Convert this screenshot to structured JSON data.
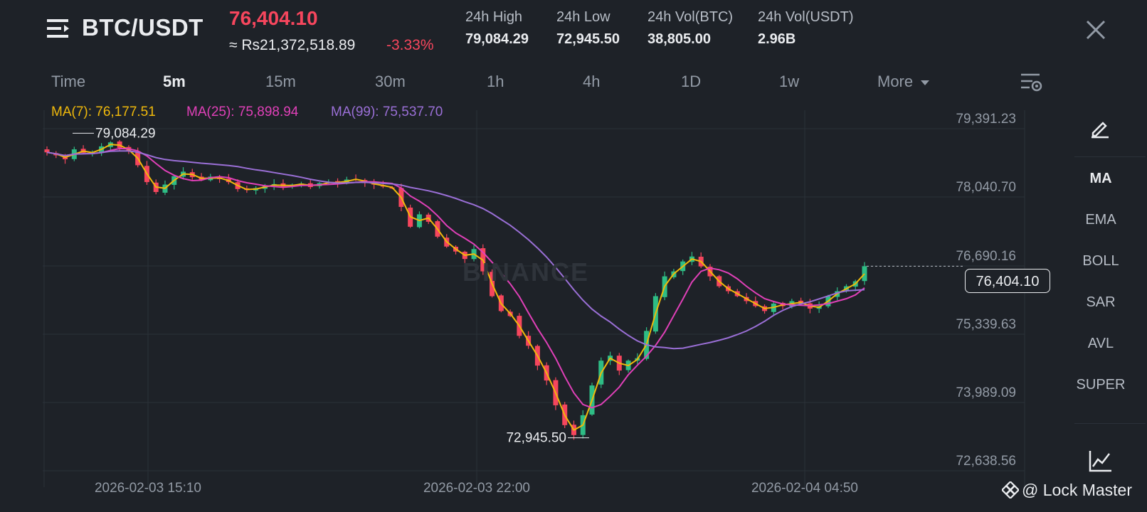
{
  "header": {
    "pair": "BTC/USDT",
    "last_price": "76,404.10",
    "approx_inr": "≈ Rs21,372,518.89",
    "change_pct": "-3.33%",
    "stats": [
      {
        "label": "24h High",
        "value": "79,084.29"
      },
      {
        "label": "24h Low",
        "value": "72,945.50"
      },
      {
        "label": "24h Vol(BTC)",
        "value": "38,805.00"
      },
      {
        "label": "24h Vol(USDT)",
        "value": "2.96B"
      }
    ]
  },
  "intervals": {
    "items": [
      "Time",
      "5m",
      "15m",
      "30m",
      "1h",
      "4h",
      "1D",
      "1w"
    ],
    "active": "5m",
    "more_label": "More"
  },
  "indicators": {
    "ma7": "MA(7): 76,177.51",
    "ma25": "MA(25): 75,898.94",
    "ma99": "MA(99): 75,537.70"
  },
  "side_panel": {
    "items": [
      "MA",
      "EMA",
      "BOLL",
      "SAR",
      "AVL",
      "SUPER"
    ],
    "active": "MA"
  },
  "watermark": "BINANCE",
  "current_price_tag": "76,404.10",
  "attribution": "@ Lock Master",
  "colors": {
    "up": "#2ebd85",
    "down": "#f6465d",
    "ma7": "#f0b90b",
    "ma25": "#e040b8",
    "ma99": "#9a6fd6",
    "background": "#1e2228"
  },
  "chart_data": {
    "type": "candlestick",
    "interval": "5m",
    "y_ticks": [
      "79,391.23",
      "78,040.70",
      "76,690.16",
      "75,339.63",
      "73,989.09",
      "72,638.56"
    ],
    "ylim": [
      72638.56,
      79391.23
    ],
    "x_ticks": [
      "2026-02-03 15:10",
      "2026-02-03 22:00",
      "2026-02-04 04:50"
    ],
    "high_marker": "79,084.29",
    "low_marker": "72,945.50",
    "ma_legend": [
      "MA(7)",
      "MA(25)",
      "MA(99)"
    ],
    "close_series": [
      78700,
      78640,
      78560,
      78760,
      78690,
      78700,
      78820,
      78900,
      78790,
      78720,
      78440,
      78100,
      77900,
      78050,
      78220,
      78310,
      78200,
      78150,
      78210,
      78160,
      78100,
      77960,
      77940,
      77980,
      78020,
      78060,
      78010,
      78050,
      78070,
      78000,
      78080,
      78100,
      78080,
      78150,
      78160,
      78080,
      78050,
      78010,
      77980,
      77600,
      77200,
      77450,
      77300,
      77000,
      76800,
      76700,
      76550,
      76750,
      76300,
      75800,
      75500,
      75400,
      75000,
      74800,
      74400,
      74100,
      73600,
      73200,
      73000,
      73400,
      74000,
      74500,
      74600,
      74300,
      74500,
      74550,
      75100,
      75800,
      76200,
      76300,
      76500,
      76600,
      76400,
      76200,
      76000,
      75900,
      75800,
      75700,
      75600,
      75500,
      75650,
      75600,
      75700,
      75650,
      75550,
      75600,
      75800,
      75900,
      76000,
      76100,
      76404.1
    ]
  }
}
